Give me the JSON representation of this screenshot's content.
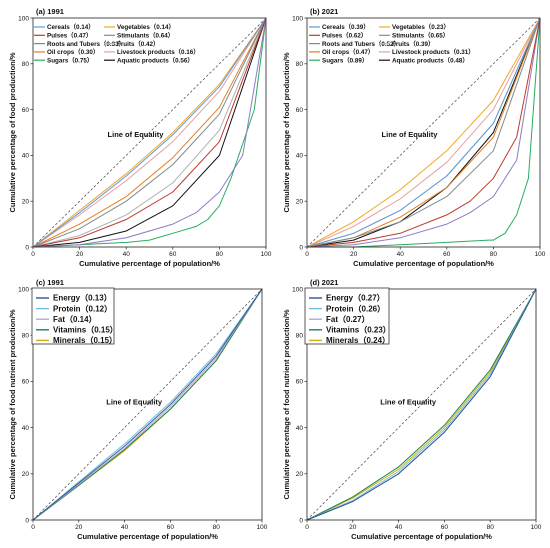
{
  "colors": {
    "Cereals": "#5b9bd5",
    "Pulses": "#c0392b",
    "Roots and Tubers": "#7f8c8d",
    "Oil crops": "#e67e22",
    "Sugars": "#27ae60",
    "Vegetables": "#f5a623",
    "Stimulants": "#8e7cc3",
    "Fruits": "#b0b0b0",
    "Livestock products": "#e8a0a0",
    "Aquatic products": "#111111",
    "Energy": "#2f5597",
    "Protein": "#6cc0e5",
    "Fat": "#b4a7d6",
    "Vitamins": "#1e8449",
    "Minerals": "#d4ac0d"
  },
  "chart_data": [
    {
      "type": "line",
      "panel": "(a) 1991",
      "xlabel": "Cumulative percentage of population/%",
      "ylabel": "Cumulative percentage of food production/%",
      "xlim": [
        0,
        100
      ],
      "ylim": [
        0,
        100
      ],
      "xticks": [
        "0",
        "20",
        "40",
        "60",
        "80",
        "100"
      ],
      "yticks": [
        "0",
        "20",
        "40",
        "60",
        "80",
        "100"
      ],
      "annotation": "Line of Equality",
      "legend_columns": 2,
      "legend_position": "top-left",
      "series": [
        {
          "name": "Cereals",
          "legend": "Cereals（0.14）",
          "x": [
            0,
            20,
            40,
            60,
            80,
            100
          ],
          "y": [
            0,
            15,
            31,
            49,
            70,
            100
          ]
        },
        {
          "name": "Vegetables",
          "legend": "Vegetables（0.14）",
          "x": [
            0,
            20,
            40,
            60,
            80,
            100
          ],
          "y": [
            0,
            16,
            32,
            50,
            71,
            100
          ]
        },
        {
          "name": "Pulses",
          "legend": "Pulses（0.47）",
          "x": [
            0,
            20,
            40,
            60,
            80,
            100
          ],
          "y": [
            0,
            4,
            12,
            24,
            46,
            100
          ]
        },
        {
          "name": "Stimulants",
          "legend": "Stimulants（0.64）",
          "x": [
            0,
            20,
            40,
            60,
            70,
            80,
            90,
            100
          ],
          "y": [
            0,
            1,
            4,
            10,
            15,
            24,
            40,
            100
          ]
        },
        {
          "name": "Roots and Tubers",
          "legend": "Roots and Tubers（0.33）",
          "x": [
            0,
            20,
            40,
            60,
            80,
            100
          ],
          "y": [
            0,
            8,
            20,
            36,
            58,
            100
          ]
        },
        {
          "name": "Fruits",
          "legend": "Fruits（0.42）",
          "x": [
            0,
            20,
            40,
            60,
            80,
            100
          ],
          "y": [
            0,
            5,
            14,
            28,
            51,
            100
          ]
        },
        {
          "name": "Oil crops",
          "legend": "Oil crops（0.30）",
          "x": [
            0,
            20,
            40,
            60,
            80,
            100
          ],
          "y": [
            0,
            10,
            22,
            39,
            61,
            100
          ]
        },
        {
          "name": "Livestock products",
          "legend": "Livestock products（0.16）",
          "x": [
            0,
            20,
            40,
            60,
            80,
            100
          ],
          "y": [
            0,
            14,
            29,
            46,
            68,
            100
          ]
        },
        {
          "name": "Sugars",
          "legend": "Sugars（0.75）",
          "x": [
            0,
            20,
            40,
            50,
            60,
            70,
            75,
            80,
            85,
            90,
            95,
            100
          ],
          "y": [
            0,
            1,
            2,
            3,
            6,
            9,
            12,
            18,
            30,
            45,
            60,
            100
          ]
        },
        {
          "name": "Aquatic products",
          "legend": "Aquatic products（0.56）",
          "x": [
            0,
            20,
            40,
            60,
            80,
            100
          ],
          "y": [
            0,
            2,
            7,
            18,
            40,
            100
          ]
        }
      ]
    },
    {
      "type": "line",
      "panel": "(b) 2021",
      "xlabel": "Cumulative percentage of population/%",
      "ylabel": "Cumulative percentage of food production/%",
      "xlim": [
        0,
        100
      ],
      "ylim": [
        0,
        100
      ],
      "xticks": [
        "0",
        "20",
        "40",
        "60",
        "80",
        "100"
      ],
      "yticks": [
        "0",
        "20",
        "40",
        "60",
        "80",
        "100"
      ],
      "annotation": "Line of Equality",
      "legend_columns": 2,
      "legend_position": "top-left",
      "series": [
        {
          "name": "Cereals",
          "legend": "Cereals（0.39）",
          "x": [
            0,
            20,
            40,
            60,
            80,
            100
          ],
          "y": [
            0,
            6,
            16,
            31,
            54,
            100
          ]
        },
        {
          "name": "Vegetables",
          "legend": "Vegetables（0.23）",
          "x": [
            0,
            20,
            40,
            60,
            80,
            100
          ],
          "y": [
            0,
            11,
            25,
            42,
            64,
            100
          ]
        },
        {
          "name": "Pulses",
          "legend": "Pulses（0.62）",
          "x": [
            0,
            20,
            40,
            60,
            70,
            80,
            90,
            100
          ],
          "y": [
            0,
            2,
            6,
            14,
            20,
            30,
            48,
            100
          ]
        },
        {
          "name": "Stimulants",
          "legend": "Stimulants（0.65）",
          "x": [
            0,
            20,
            40,
            60,
            70,
            80,
            90,
            100
          ],
          "y": [
            0,
            1,
            4,
            10,
            15,
            22,
            38,
            100
          ]
        },
        {
          "name": "Roots and Tubers",
          "legend": "Roots and Tubers（0.52）",
          "x": [
            0,
            20,
            40,
            60,
            80,
            100
          ],
          "y": [
            0,
            4,
            11,
            22,
            42,
            100
          ]
        },
        {
          "name": "Fruits",
          "legend": "Fruits（0.39）",
          "x": [
            0,
            20,
            40,
            60,
            80,
            100
          ],
          "y": [
            0,
            6,
            16,
            31,
            54,
            100
          ]
        },
        {
          "name": "Oil crops",
          "legend": "Oil crops（0.47）",
          "x": [
            0,
            20,
            40,
            60,
            80,
            100
          ],
          "y": [
            0,
            4,
            13,
            26,
            48,
            100
          ]
        },
        {
          "name": "Livestock products",
          "legend": "Livestock products（0.31）",
          "x": [
            0,
            20,
            40,
            60,
            80,
            100
          ],
          "y": [
            0,
            9,
            21,
            37,
            60,
            100
          ]
        },
        {
          "name": "Sugars",
          "legend": "Sugars（0.89）",
          "x": [
            0,
            20,
            40,
            60,
            78,
            80,
            85,
            90,
            95,
            100
          ],
          "y": [
            0,
            0,
            1,
            2,
            3,
            3,
            6,
            14,
            30,
            100
          ]
        },
        {
          "name": "Aquatic products",
          "legend": "Aquatic products（0.48）",
          "x": [
            0,
            20,
            40,
            60,
            80,
            100
          ],
          "y": [
            0,
            3,
            11,
            26,
            50,
            100
          ]
        }
      ]
    },
    {
      "type": "line",
      "panel": "(c) 1991",
      "xlabel": "Cumulative percentage of population/%",
      "ylabel": "Cumulative percentage of food nutrient production/%",
      "xlim": [
        0,
        100
      ],
      "ylim": [
        0,
        100
      ],
      "xticks": [
        "0",
        "20",
        "40",
        "60",
        "80",
        "100"
      ],
      "yticks": [
        "0",
        "20",
        "40",
        "60",
        "80",
        "100"
      ],
      "annotation": "Line of Equality",
      "legend_columns": 1,
      "legend_position": "top-left",
      "series": [
        {
          "name": "Energy",
          "legend": "Energy（0.13）",
          "x": [
            0,
            20,
            40,
            60,
            80,
            100
          ],
          "y": [
            0,
            16,
            32,
            50,
            71,
            100
          ]
        },
        {
          "name": "Protein",
          "legend": "Protein（0.12）",
          "x": [
            0,
            20,
            40,
            60,
            80,
            100
          ],
          "y": [
            0,
            16.5,
            33,
            51,
            72,
            100
          ]
        },
        {
          "name": "Fat",
          "legend": "Fat（0.14）",
          "x": [
            0,
            20,
            40,
            60,
            80,
            100
          ],
          "y": [
            0,
            15.5,
            31,
            49,
            70,
            100
          ]
        },
        {
          "name": "Vitamins",
          "legend": "Vitamins（0.15）",
          "x": [
            0,
            20,
            40,
            60,
            80,
            100
          ],
          "y": [
            0,
            15,
            30.5,
            48,
            69,
            100
          ]
        },
        {
          "name": "Minerals",
          "legend": "Minerals（0.15）",
          "x": [
            0,
            20,
            40,
            60,
            80,
            100
          ],
          "y": [
            0,
            15,
            30,
            48,
            69,
            100
          ]
        }
      ]
    },
    {
      "type": "line",
      "panel": "(d) 2021",
      "xlabel": "Cumulative percentage of population/%",
      "ylabel": "Cumulative percentage of food nutrient production/%",
      "xlim": [
        0,
        100
      ],
      "ylim": [
        0,
        100
      ],
      "xticks": [
        "0",
        "20",
        "40",
        "60",
        "80",
        "100"
      ],
      "yticks": [
        "0",
        "20",
        "40",
        "60",
        "80",
        "100"
      ],
      "annotation": "Line of Equality",
      "legend_columns": 1,
      "legend_position": "top-left",
      "series": [
        {
          "name": "Energy",
          "legend": "Energy（0.27）",
          "x": [
            0,
            20,
            40,
            60,
            80,
            100
          ],
          "y": [
            0,
            8,
            20,
            38,
            62,
            100
          ]
        },
        {
          "name": "Protein",
          "legend": "Protein（0.26）",
          "x": [
            0,
            20,
            40,
            60,
            80,
            100
          ],
          "y": [
            0,
            8.5,
            21,
            39,
            63,
            100
          ]
        },
        {
          "name": "Fat",
          "legend": "Fat（0.27）",
          "x": [
            0,
            20,
            40,
            60,
            80,
            100
          ],
          "y": [
            0,
            8,
            20,
            38,
            62,
            100
          ]
        },
        {
          "name": "Vitamins",
          "legend": "Vitamins（0.23）",
          "x": [
            0,
            20,
            40,
            60,
            80,
            100
          ],
          "y": [
            0,
            10,
            23,
            41,
            65,
            100
          ]
        },
        {
          "name": "Minerals",
          "legend": "Minerals（0.24）",
          "x": [
            0,
            20,
            40,
            60,
            80,
            100
          ],
          "y": [
            0,
            9.5,
            22,
            40,
            64,
            100
          ]
        }
      ]
    }
  ]
}
